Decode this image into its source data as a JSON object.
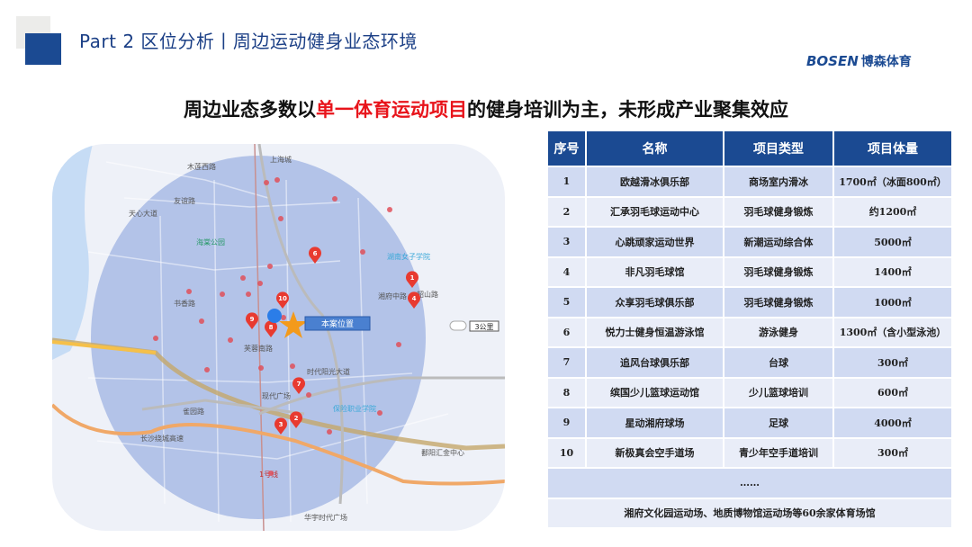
{
  "header": {
    "title": "Part 2 区位分析丨周边运动健身业态环境",
    "logo_en": "BOSEN",
    "logo_cn": "博森体育"
  },
  "headline": {
    "prefix": "周边业态多数以",
    "highlight": "单一体育运动项目",
    "suffix": "的健身培训为主，未形成产业聚集效应"
  },
  "colors": {
    "brand": "#1b4a92",
    "highlight": "#e8141b",
    "row_odd": "#d0daf2",
    "row_even": "#e9edf8",
    "pin": "#e83a30",
    "radius_fill": "#9fb3e3"
  },
  "map": {
    "project_label": "本案位置",
    "scale": "3公里",
    "labels": [
      "木莲西路",
      "友谊路",
      "海棠公园",
      "天心大道",
      "书香路",
      "上海城",
      "湖南女子学院",
      "湘府中路",
      "韶山路",
      "芙蓉南路",
      "时代阳光大道",
      "现代广场",
      "保险职业学院",
      "雀园路",
      "长沙绕城高速",
      "鄱阳汇金中心",
      "华宇时代广场",
      "1号线"
    ],
    "pins": [
      "1",
      "2",
      "3",
      "4",
      "6",
      "7",
      "8",
      "9",
      "10"
    ]
  },
  "table": {
    "headers": [
      "序号",
      "名称",
      "项目类型",
      "项目体量"
    ],
    "rows": [
      [
        "1",
        "欧越滑冰俱乐部",
        "商场室内滑冰",
        "1700㎡（冰面800㎡）"
      ],
      [
        "2",
        "汇承羽毛球运动中心",
        "羽毛球健身锻炼",
        "约1200㎡"
      ],
      [
        "3",
        "心跳顽家运动世界",
        "新潮运动综合体",
        "5000㎡"
      ],
      [
        "4",
        "非凡羽毛球馆",
        "羽毛球健身锻炼",
        "1400㎡"
      ],
      [
        "5",
        "众享羽毛球俱乐部",
        "羽毛球健身锻炼",
        "1000㎡"
      ],
      [
        "6",
        "悦力士健身恒温游泳馆",
        "游泳健身",
        "1300㎡（含小型泳池）"
      ],
      [
        "7",
        "追风台球俱乐部",
        "台球",
        "300㎡"
      ],
      [
        "8",
        "缤国少儿篮球运动馆",
        "少儿篮球培训",
        "600㎡"
      ],
      [
        "9",
        "星动湘府球场",
        "足球",
        "4000㎡"
      ],
      [
        "10",
        "新极真会空手道场",
        "青少年空手道培训",
        "300㎡"
      ]
    ],
    "ellipsis": "……",
    "footer": "湘府文化园运动场、地质博物馆运动场等60余家体育场馆"
  }
}
